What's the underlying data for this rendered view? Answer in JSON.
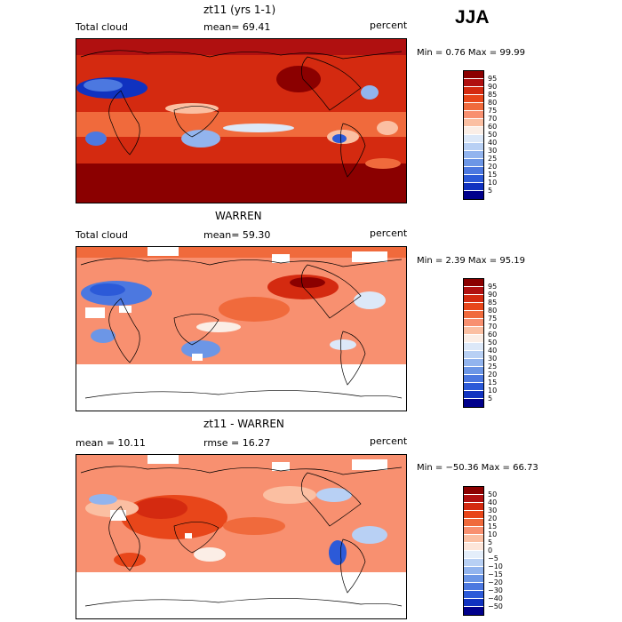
{
  "season": "JJA",
  "panels": [
    {
      "title": "zt11 (yrs 1-1)",
      "left_label": "Total cloud",
      "center_label": "mean=  69.41",
      "units": "percent",
      "minmax": "Min =   0.76 Max =  99.99",
      "colorbar_labels": [
        "95",
        "90",
        "85",
        "80",
        "75",
        "70",
        "60",
        "50",
        "40",
        "30",
        "25",
        "20",
        "15",
        "10",
        "5"
      ],
      "colorbar_colors": [
        "#8b0000",
        "#b01010",
        "#d42a10",
        "#e8461a",
        "#f06a3c",
        "#f89070",
        "#fbbfa2",
        "#fbeee6",
        "#dce8f8",
        "#b8d0f4",
        "#92b4ee",
        "#6c96e6",
        "#4c78e0",
        "#2c5ad8",
        "#1032c0",
        "#00008b"
      ]
    },
    {
      "title": "WARREN",
      "left_label": "Total cloud",
      "center_label": "mean=  59.30",
      "units": "percent",
      "minmax": "Min =   2.39 Max =  95.19",
      "colorbar_labels": [
        "95",
        "90",
        "85",
        "80",
        "75",
        "70",
        "60",
        "50",
        "40",
        "30",
        "25",
        "20",
        "15",
        "10",
        "5"
      ],
      "colorbar_colors": [
        "#8b0000",
        "#b01010",
        "#d42a10",
        "#e8461a",
        "#f06a3c",
        "#f89070",
        "#fbbfa2",
        "#fbeee6",
        "#dce8f8",
        "#b8d0f4",
        "#92b4ee",
        "#6c96e6",
        "#4c78e0",
        "#2c5ad8",
        "#1032c0",
        "#00008b"
      ]
    },
    {
      "title": "zt11 - WARREN",
      "left_label": "mean =  10.11",
      "center_label": "rmse =  16.27",
      "units": "percent",
      "minmax": "Min = −50.36 Max =  66.73",
      "colorbar_labels": [
        "50",
        "40",
        "30",
        "20",
        "15",
        "10",
        "5",
        "0",
        "−5",
        "−10",
        "−15",
        "−20",
        "−30",
        "−40",
        "−50"
      ],
      "colorbar_colors": [
        "#8b0000",
        "#b01010",
        "#d42a10",
        "#e8461a",
        "#f06a3c",
        "#f89070",
        "#fbbfa2",
        "#fde6da",
        "#e4eefa",
        "#b8d0f4",
        "#92b4ee",
        "#6c96e6",
        "#4c78e0",
        "#2c5ad8",
        "#1032c0",
        "#00008b"
      ]
    }
  ]
}
